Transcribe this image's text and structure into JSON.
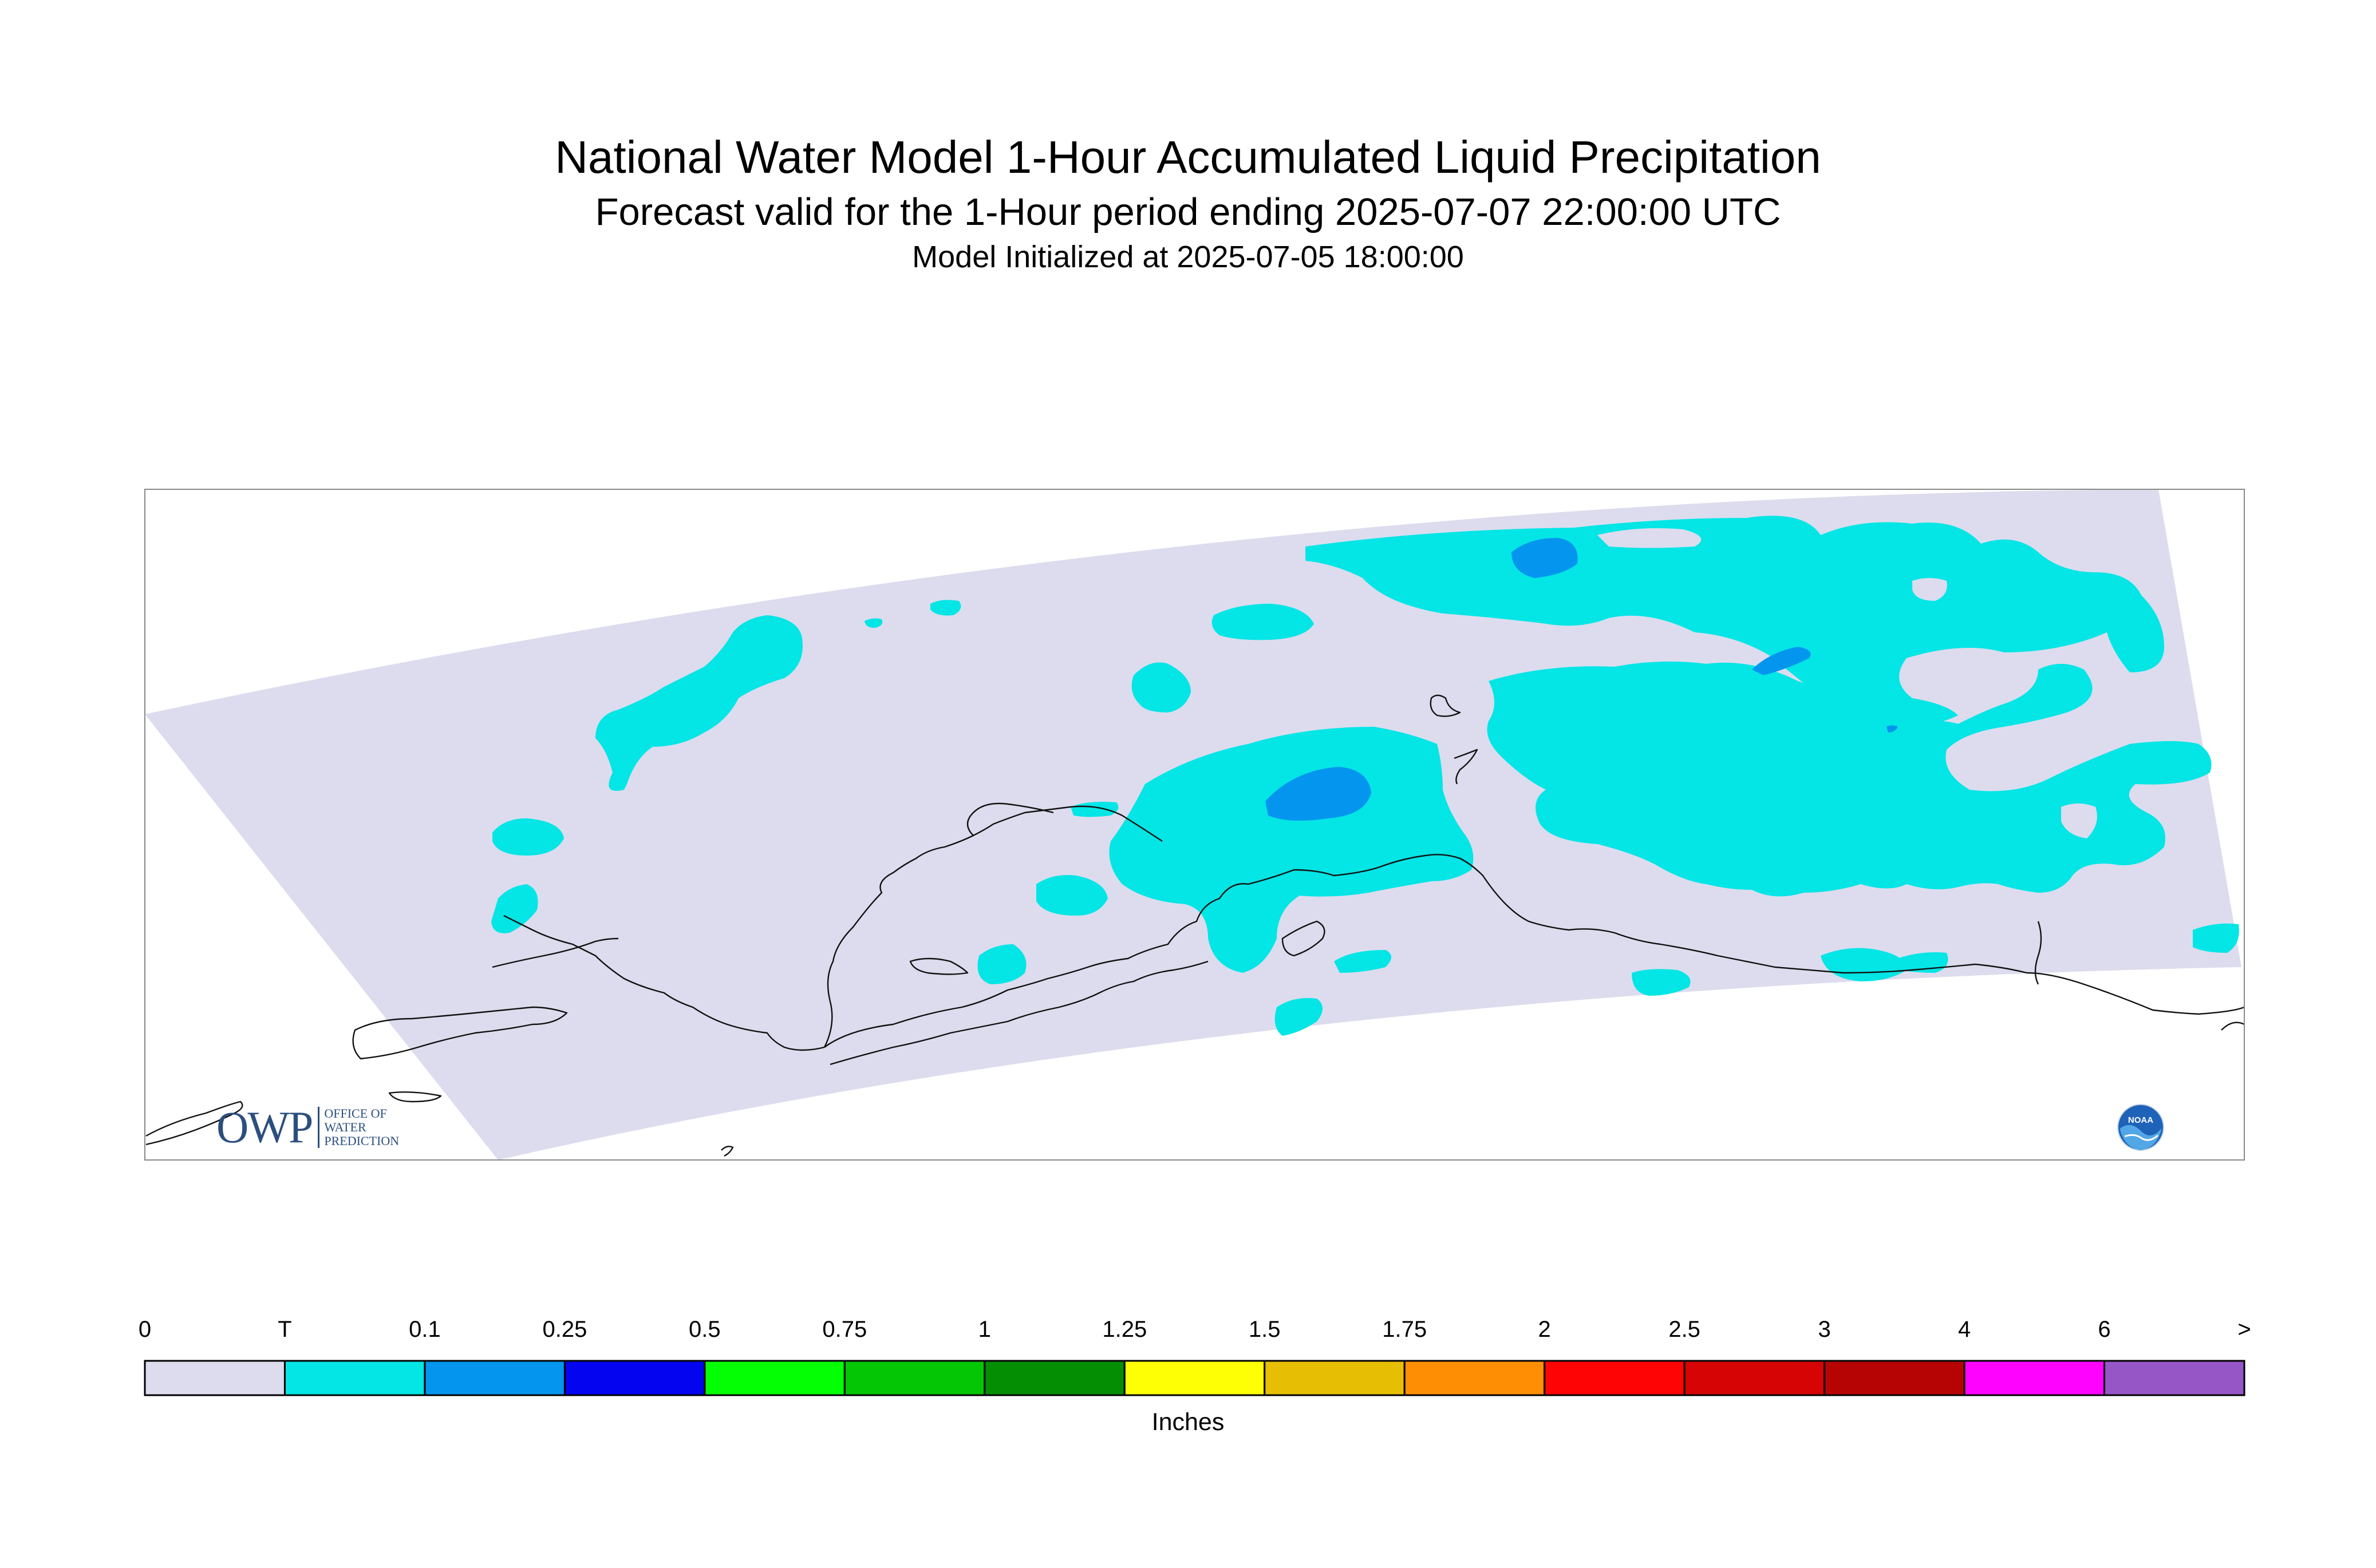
{
  "title": {
    "main": "National Water Model 1-Hour Accumulated Liquid Precipitation",
    "forecast": "Forecast valid for the 1-Hour period ending 2025-07-07 22:00:00 UTC",
    "init": "Model Initialized at 2025-07-05 18:00:00"
  },
  "logos": {
    "owp_mark": "OWP",
    "owp_text": "OFFICE OF WATER PREDICTION",
    "noaa_text": "NOAA"
  },
  "legend": {
    "units": "Inches",
    "ticks": [
      "0",
      "T",
      "0.1",
      "0.25",
      "0.5",
      "0.75",
      "1",
      "1.25",
      "1.5",
      "1.75",
      "2",
      "2.5",
      "3",
      "4",
      "6",
      ">"
    ],
    "bins": [
      {
        "label": "0 - T",
        "color": "#dcdcee"
      },
      {
        "label": "T - 0.1",
        "color": "#04e5e5"
      },
      {
        "label": "0.1 - 0.25",
        "color": "#0496ee"
      },
      {
        "label": "0.25 - 0.5",
        "color": "#0404f0"
      },
      {
        "label": "0.5 - 0.75",
        "color": "#04fe04"
      },
      {
        "label": "0.75 - 1",
        "color": "#04c604"
      },
      {
        "label": "1 - 1.25",
        "color": "#048e04"
      },
      {
        "label": "1.25 - 1.5",
        "color": "#fefe04"
      },
      {
        "label": "1.5 - 1.75",
        "color": "#e6be04"
      },
      {
        "label": "1.75 - 2",
        "color": "#fe8e04"
      },
      {
        "label": "2 - 2.5",
        "color": "#fe0404"
      },
      {
        "label": "2.5 - 3",
        "color": "#d60404"
      },
      {
        "label": "3 - 4",
        "color": "#b60404"
      },
      {
        "label": "4 - 6",
        "color": "#fe04fe"
      },
      {
        "label": "6 - >",
        "color": "#9656c6"
      }
    ]
  },
  "colors": {
    "domain": "#dcdcee",
    "trace": "#04e5e5",
    "light": "#0496ee",
    "coast": "#111111",
    "frame": "#888888"
  }
}
